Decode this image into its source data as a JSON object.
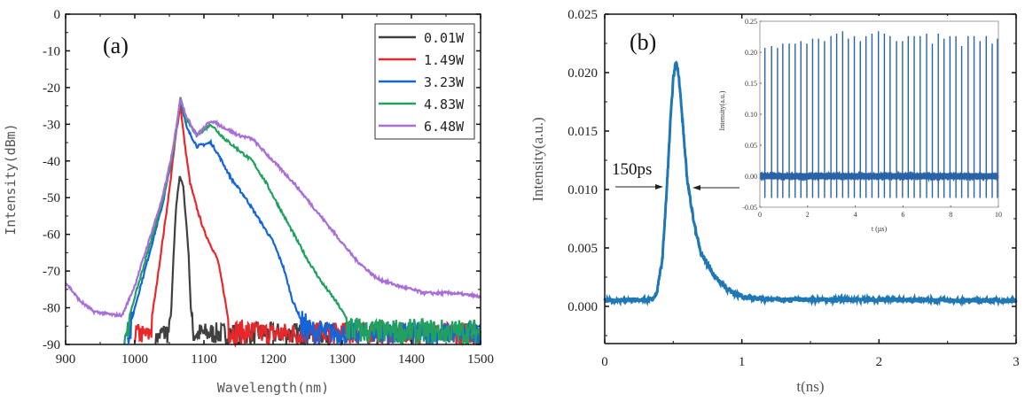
{
  "chart_data": [
    {
      "type": "line",
      "panel_label": "(a)",
      "xlabel": "Wavelength(nm)",
      "ylabel": "Intensity(dBm)",
      "xlim": [
        900,
        1500
      ],
      "ylim": [
        -90,
        0
      ],
      "xticks": [
        900,
        1000,
        1100,
        1200,
        1300,
        1400,
        1500
      ],
      "yticks": [
        0,
        -10,
        -20,
        -30,
        -40,
        -50,
        -60,
        -70,
        -80,
        -90
      ],
      "grid": false,
      "legend_position": "top-right",
      "series": [
        {
          "name": "0.01W",
          "color": "#404040",
          "points": [
            [
              1030,
              -90
            ],
            [
              1040,
              -87
            ],
            [
              1050,
              -86
            ],
            [
              1053,
              -80
            ],
            [
              1056,
              -66
            ],
            [
              1060,
              -52
            ],
            [
              1065,
              -44
            ],
            [
              1070,
              -47
            ],
            [
              1075,
              -58
            ],
            [
              1078,
              -66
            ],
            [
              1081,
              -80
            ],
            [
              1085,
              -87
            ],
            [
              1150,
              -87
            ],
            [
              1250,
              -87
            ],
            [
              1310,
              -87
            ]
          ]
        },
        {
          "name": "1.49W",
          "color": "#e8272a",
          "points": [
            [
              1000,
              -87
            ],
            [
              1020,
              -88
            ],
            [
              1030,
              -76
            ],
            [
              1040,
              -62
            ],
            [
              1050,
              -48
            ],
            [
              1060,
              -32
            ],
            [
              1066,
              -25
            ],
            [
              1072,
              -35
            ],
            [
              1080,
              -46
            ],
            [
              1090,
              -53
            ],
            [
              1100,
              -59
            ],
            [
              1110,
              -63
            ],
            [
              1120,
              -67
            ],
            [
              1128,
              -75
            ],
            [
              1135,
              -83
            ],
            [
              1140,
              -86
            ],
            [
              1200,
              -87
            ],
            [
              1300,
              -87
            ],
            [
              1500,
              -87
            ]
          ]
        },
        {
          "name": "3.23W",
          "color": "#1565d8",
          "points": [
            [
              990,
              -88
            ],
            [
              1000,
              -80
            ],
            [
              1020,
              -66
            ],
            [
              1040,
              -52
            ],
            [
              1055,
              -38
            ],
            [
              1066,
              -23
            ],
            [
              1075,
              -31
            ],
            [
              1090,
              -36
            ],
            [
              1110,
              -35
            ],
            [
              1120,
              -38
            ],
            [
              1140,
              -45
            ],
            [
              1160,
              -50
            ],
            [
              1180,
              -56
            ],
            [
              1200,
              -62
            ],
            [
              1215,
              -69
            ],
            [
              1228,
              -78
            ],
            [
              1240,
              -83
            ],
            [
              1255,
              -86
            ],
            [
              1300,
              -87
            ],
            [
              1500,
              -87
            ]
          ]
        },
        {
          "name": "4.83W",
          "color": "#22a060",
          "points": [
            [
              985,
              -88
            ],
            [
              1000,
              -77
            ],
            [
              1020,
              -64
            ],
            [
              1040,
              -51
            ],
            [
              1055,
              -38
            ],
            [
              1066,
              -23
            ],
            [
              1075,
              -29
            ],
            [
              1090,
              -33
            ],
            [
              1110,
              -30
            ],
            [
              1130,
              -34
            ],
            [
              1150,
              -37
            ],
            [
              1170,
              -40
            ],
            [
              1190,
              -46
            ],
            [
              1210,
              -53
            ],
            [
              1230,
              -60
            ],
            [
              1250,
              -67
            ],
            [
              1270,
              -73
            ],
            [
              1290,
              -78
            ],
            [
              1310,
              -84
            ],
            [
              1330,
              -86
            ],
            [
              1500,
              -86
            ]
          ]
        },
        {
          "name": "6.48W",
          "color": "#a96fd9",
          "points": [
            [
              900,
              -73
            ],
            [
              920,
              -78
            ],
            [
              940,
              -81
            ],
            [
              970,
              -82
            ],
            [
              982,
              -82
            ],
            [
              1000,
              -74
            ],
            [
              1020,
              -62
            ],
            [
              1040,
              -50
            ],
            [
              1055,
              -37
            ],
            [
              1066,
              -23
            ],
            [
              1075,
              -28
            ],
            [
              1090,
              -33
            ],
            [
              1110,
              -29
            ],
            [
              1130,
              -31
            ],
            [
              1150,
              -33
            ],
            [
              1170,
              -34
            ],
            [
              1200,
              -40
            ],
            [
              1230,
              -46
            ],
            [
              1260,
              -53
            ],
            [
              1290,
              -60
            ],
            [
              1320,
              -67
            ],
            [
              1350,
              -72
            ],
            [
              1380,
              -74
            ],
            [
              1420,
              -76
            ],
            [
              1460,
              -76
            ],
            [
              1500,
              -77
            ]
          ]
        }
      ]
    },
    {
      "type": "line",
      "panel_label": "(b)",
      "xlabel": "t(ns)",
      "ylabel": "Intensity(a.u.)",
      "xlim": [
        0,
        3
      ],
      "ylim": [
        -0.0025,
        0.025
      ],
      "xticks": [
        "0",
        "1",
        "2",
        "3"
      ],
      "yticks": [
        "0.025",
        "0.020",
        "0.015",
        "0.010",
        "0.005",
        "0.000"
      ],
      "grid": false,
      "color": "#1f77b4",
      "annotation": "150ps",
      "points": [
        [
          0,
          0.0005
        ],
        [
          0.35,
          0.0006
        ],
        [
          0.38,
          0.0012
        ],
        [
          0.42,
          0.004
        ],
        [
          0.45,
          0.0095
        ],
        [
          0.48,
          0.016
        ],
        [
          0.5,
          0.0195
        ],
        [
          0.52,
          0.021
        ],
        [
          0.54,
          0.0198
        ],
        [
          0.57,
          0.0155
        ],
        [
          0.6,
          0.011
        ],
        [
          0.65,
          0.0072
        ],
        [
          0.7,
          0.0046
        ],
        [
          0.8,
          0.0026
        ],
        [
          0.9,
          0.0014
        ],
        [
          1.0,
          0.0008
        ],
        [
          1.2,
          0.0006
        ],
        [
          3,
          0.0005
        ]
      ]
    },
    {
      "type": "line",
      "inset": true,
      "xlabel": "t (µs)",
      "ylabel": "Intensity(a.u.)",
      "xlim": [
        0,
        10
      ],
      "ylim": [
        -0.05,
        0.25
      ],
      "xticks": [
        "0",
        "2",
        "4",
        "6",
        "8",
        "10"
      ],
      "yticks": [
        "0.25",
        "0.20",
        "0.15",
        "0.10",
        "0.05",
        "0.00",
        "-0.05"
      ],
      "color": "#2a62a8",
      "pulse_times": [
        0.21,
        0.49,
        0.74,
        0.96,
        1.23,
        1.48,
        1.72,
        1.97,
        2.21,
        2.46,
        2.71,
        2.98,
        3.22,
        3.47,
        3.71,
        3.96,
        4.21,
        4.45,
        4.7,
        4.97,
        5.22,
        5.46,
        5.73,
        5.98,
        6.22,
        6.47,
        6.72,
        6.99,
        7.23,
        7.48,
        7.72,
        7.97,
        8.22,
        8.46,
        8.73,
        8.98,
        9.23,
        9.49,
        9.74,
        9.96
      ],
      "pulse_heights": [
        0.207,
        0.21,
        0.207,
        0.214,
        0.214,
        0.214,
        0.218,
        0.214,
        0.222,
        0.222,
        0.218,
        0.226,
        0.23,
        0.234,
        0.222,
        0.226,
        0.218,
        0.226,
        0.23,
        0.234,
        0.23,
        0.226,
        0.218,
        0.218,
        0.226,
        0.226,
        0.226,
        0.23,
        0.214,
        0.23,
        0.222,
        0.226,
        0.226,
        0.21,
        0.226,
        0.226,
        0.218,
        0.226,
        0.214,
        0.222
      ],
      "pulse_min": -0.035,
      "noise_band": [
        -0.007,
        0.007
      ]
    }
  ]
}
